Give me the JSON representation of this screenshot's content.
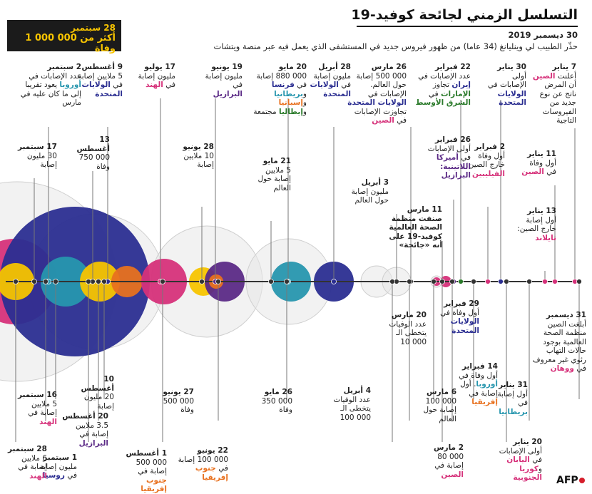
{
  "header": {
    "title": "التسلسل الزمني لجائحة كوفيد-19",
    "intro_date": "30 ديسمبر 2019",
    "intro_text": "حذّر الطبيب لي وينليانغ (34 عاما) من ظهور فيروس جديد في المستشفى الذي يعمل فيه عبر منصة ويتشات"
  },
  "callout": {
    "date": "28 سبتمبر",
    "text": "أكثر من 000 000 1 وفاة"
  },
  "logo": "AFP",
  "colors": {
    "pink": "#d6317a",
    "blue": "#2b2e91",
    "teal": "#2796ae",
    "green": "#2a7a2a",
    "orange": "#e8711f",
    "yellow": "#f7c400",
    "purple": "#5b2a86",
    "grey": "#e3e3e3"
  },
  "events_top": [
    {
      "date": "7 يناير",
      "parts": [
        [
          "أعلنت ",
          ""
        ],
        [
          "الصين",
          "pink"
        ],
        [
          " أن المرض ناتج عن نوع جديد من الفيروسات التاجية",
          ""
        ]
      ]
    },
    {
      "date": "11 يناير",
      "parts": [
        [
          "أول وفاة في ",
          ""
        ],
        [
          "الصين",
          "pink"
        ]
      ]
    },
    {
      "date": "13 يناير",
      "parts": [
        [
          "أول إصابة خارج الصين: ",
          ""
        ],
        [
          "تايلاند",
          "pink"
        ]
      ]
    },
    {
      "date": "30 يناير",
      "parts": [
        [
          "أولى الإصابات في ",
          ""
        ],
        [
          "الولايات المتحدة",
          "blue"
        ]
      ]
    },
    {
      "date": "2 فبراير",
      "parts": [
        [
          "أول وفاة خارج الصين: ",
          ""
        ],
        [
          "الفيليبين",
          "pink"
        ]
      ]
    },
    {
      "date": "22 فبراير",
      "parts": [
        [
          "عدد الإصابات في ",
          ""
        ],
        [
          "إيران",
          "blue"
        ],
        [
          " تجاوز ",
          ""
        ],
        [
          "الإمارات",
          "green"
        ],
        [
          " في ",
          ""
        ],
        [
          "الشرق الأوسط",
          "green"
        ]
      ]
    },
    {
      "date": "26 فبراير",
      "parts": [
        [
          "أولى الإصابات في ",
          ""
        ],
        [
          "أميركا اللاتينية: البرازيل",
          "purple"
        ]
      ]
    },
    {
      "date": "11 مارس",
      "parts": [
        [
          "صنفت منظمة الصحة العالمية كوفيد-19 على أنه «جائحة»",
          "bold"
        ]
      ]
    },
    {
      "date": "26 مارس",
      "parts": [
        [
          "000 500 إصابة حول العالم. الإصابات في ",
          ""
        ],
        [
          "الولايات المتحدة",
          "blue"
        ],
        [
          " تجاوزت الإصابات في ",
          ""
        ],
        [
          "الصين",
          "pink"
        ]
      ]
    },
    {
      "date": "3 أبريل",
      "parts": [
        [
          "مليون إصابة حول العالم",
          ""
        ]
      ]
    },
    {
      "date": "28 أبريل",
      "parts": [
        [
          "مليون إصابة في ",
          ""
        ],
        [
          "الولايات المتحدة",
          "blue"
        ]
      ]
    },
    {
      "date": "20 مايو",
      "parts": [
        [
          "000 880 إصابة في ",
          ""
        ],
        [
          "فرنسا",
          "blue"
        ],
        [
          " و",
          ""
        ],
        [
          "بريطانيا",
          "teal"
        ],
        [
          " و",
          ""
        ],
        [
          "إسبانيا",
          "orange"
        ],
        [
          " و",
          ""
        ],
        [
          "إيطاليا",
          "green"
        ],
        [
          " مجتمعة",
          ""
        ]
      ]
    },
    {
      "date": "21 مايو",
      "parts": [
        [
          "5 ملايين إصابة حول العالم",
          ""
        ]
      ]
    },
    {
      "date": "19 يونيو",
      "parts": [
        [
          "مليون إصابة في ",
          ""
        ],
        [
          "البرازيل",
          "purple"
        ]
      ]
    },
    {
      "date": "28 يونيو",
      "parts": [
        [
          "10 ملايين إصابة",
          ""
        ]
      ]
    },
    {
      "date": "17 يوليو",
      "parts": [
        [
          "مليون إصابة في ",
          ""
        ],
        [
          "الهند",
          "pink"
        ]
      ]
    },
    {
      "date": "9 أغسطس",
      "parts": [
        [
          "5 ملايين إصابة في ",
          ""
        ],
        [
          "الولايات المتحدة",
          "blue"
        ]
      ]
    },
    {
      "date": "13 أغسطس",
      "parts": [
        [
          "000 750 وفاة",
          ""
        ]
      ]
    },
    {
      "date": "2 سبتمبر",
      "parts": [
        [
          "عدد الإصابات في ",
          ""
        ],
        [
          "أوروبا",
          "teal"
        ],
        [
          " يعود تقريبا إلى ما كان عليه في مارس",
          ""
        ]
      ]
    },
    {
      "date": "17 سبتمبر",
      "parts": [
        [
          "30 مليون إصابة",
          ""
        ]
      ]
    }
  ],
  "events_bottom": [
    {
      "date": "31 ديسمبر",
      "parts": [
        [
          "أبلغت الصين منظمة الصحة العالمية بوجود حالات التهاب رئوي غير معروف في ",
          ""
        ],
        [
          "ووهان",
          "pink"
        ]
      ]
    },
    {
      "date": "20 يناير",
      "parts": [
        [
          "أولى الإصابات في ",
          ""
        ],
        [
          "اليابان",
          "pink"
        ],
        [
          " و",
          ""
        ],
        [
          "كوريا الجنوبية",
          "pink"
        ]
      ]
    },
    {
      "date": "31 يناير",
      "parts": [
        [
          "أول إصابة في ",
          ""
        ],
        [
          "بريطانيا",
          "teal"
        ]
      ]
    },
    {
      "date": "14 فبراير",
      "parts": [
        [
          "أول وفاة في ",
          ""
        ],
        [
          "أوروبا",
          "teal"
        ],
        [
          ". أول إصابة في ",
          ""
        ],
        [
          "إفريقيا",
          "orange"
        ]
      ]
    },
    {
      "date": "29 فبراير",
      "parts": [
        [
          "أول وفاة في ",
          ""
        ],
        [
          "الولايات المتحدة",
          "blue"
        ]
      ]
    },
    {
      "date": "2 مارس",
      "parts": [
        [
          "000 80 إصابة في ",
          ""
        ],
        [
          "الصين",
          "pink"
        ]
      ]
    },
    {
      "date": "6 مارس",
      "parts": [
        [
          "000 100 إصابة حول العالم",
          ""
        ]
      ]
    },
    {
      "date": "20 مارس",
      "parts": [
        [
          "عدد الوفيات يتخطى الـ 000 10",
          ""
        ]
      ]
    },
    {
      "date": "4 أبريل",
      "parts": [
        [
          "عدد الوفيات يتخطى الـ 000 100",
          ""
        ]
      ]
    },
    {
      "date": "26 مايو",
      "parts": [
        [
          "000 350 وفاة",
          ""
        ]
      ]
    },
    {
      "date": "22 يونيو",
      "parts": [
        [
          "000 100 إصابة في ",
          ""
        ],
        [
          "جنوب إفريقيا",
          "orange"
        ]
      ]
    },
    {
      "date": "27 يونيو",
      "parts": [
        [
          "000 500 وفاة",
          ""
        ]
      ]
    },
    {
      "date": "1 أغسطس",
      "parts": [
        [
          "000 500 إصابة في ",
          ""
        ],
        [
          "جنوب إفريقيا",
          "orange"
        ]
      ]
    },
    {
      "date": "10 أغسطس",
      "parts": [
        [
          "20 مليون إصابة",
          ""
        ]
      ]
    },
    {
      "date": "20 أغسطس",
      "parts": [
        [
          "3.5 ملايين إصابة في ",
          ""
        ],
        [
          "البرازيل",
          "purple"
        ]
      ]
    },
    {
      "date": "1 سبتمبر",
      "parts": [
        [
          "مليون إصابة في ",
          ""
        ],
        [
          "روسيا",
          "blue"
        ]
      ]
    },
    {
      "date": "16 سبتمبر",
      "parts": [
        [
          "5 ملايين إصابة في ",
          ""
        ],
        [
          "الهند",
          "pink"
        ]
      ]
    },
    {
      "date": "28 سبتمبر",
      "parts": [
        [
          "6 ملايين إصابة في ",
          ""
        ],
        [
          "الهند",
          "pink"
        ]
      ]
    }
  ]
}
